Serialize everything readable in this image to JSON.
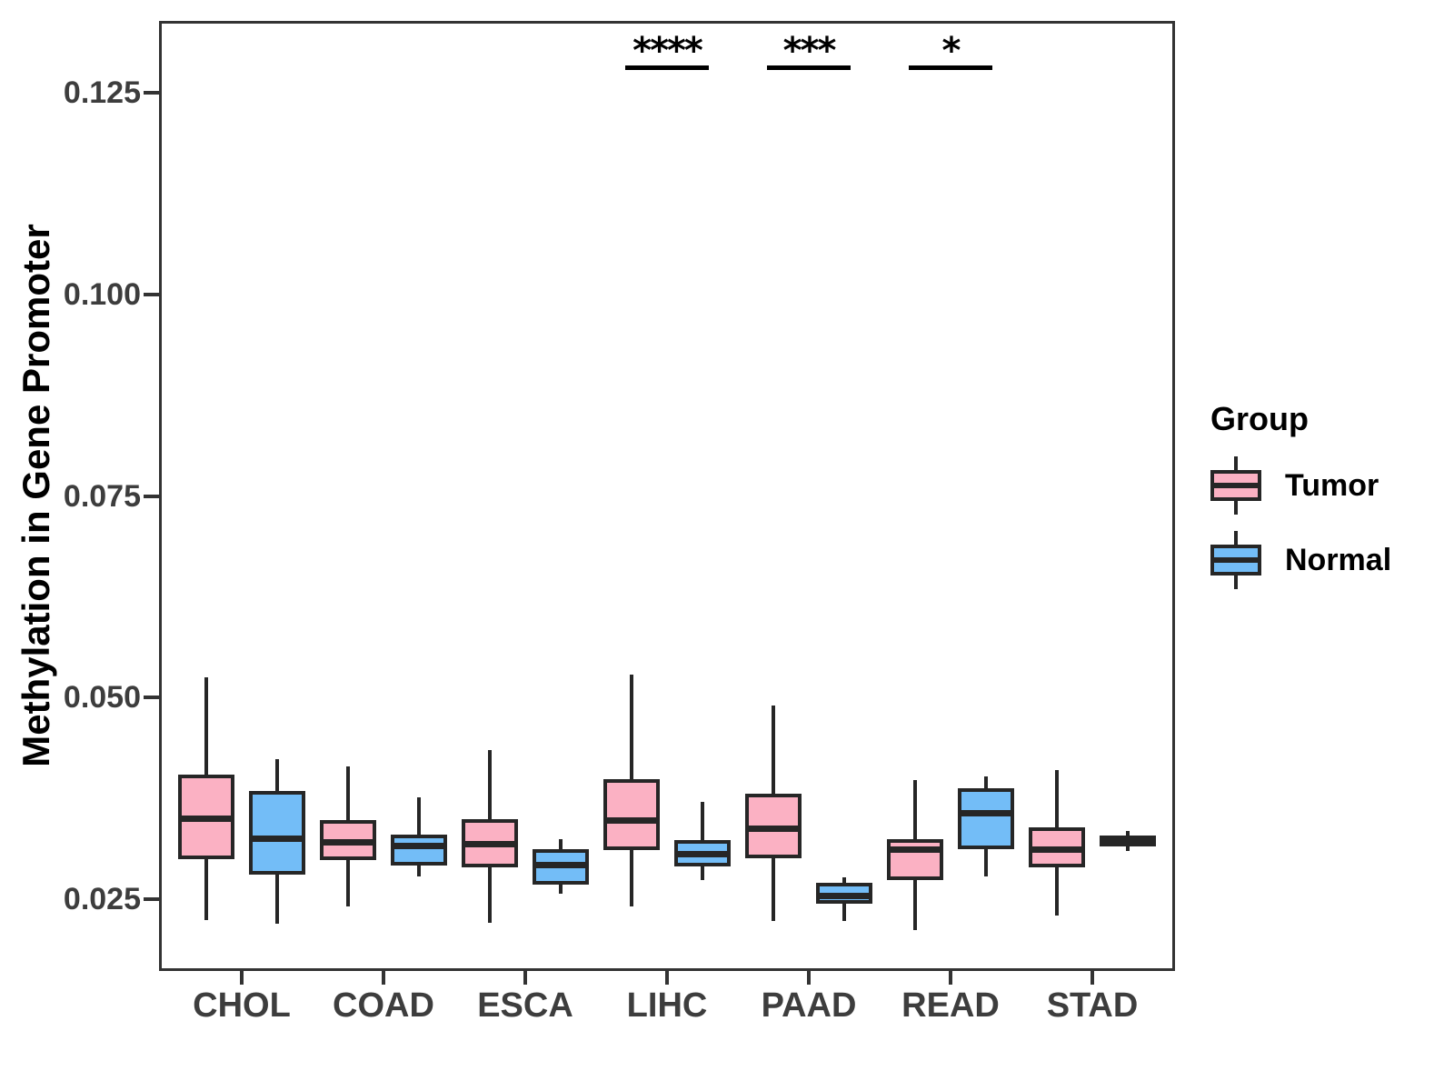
{
  "chart_data": {
    "type": "boxplot",
    "title": "",
    "xlabel": "",
    "ylabel": "Methylation in Gene Promoter",
    "categories": [
      "CHOL",
      "COAD",
      "ESCA",
      "LIHC",
      "PAAD",
      "READ",
      "STAD"
    ],
    "y_axis": {
      "tick_labels": [
        "0.125",
        "0.100",
        "0.075",
        "0.050",
        "0.025"
      ],
      "tick_values": [
        0.125,
        0.1,
        0.075,
        0.05,
        0.025
      ],
      "ylim": [
        0.016,
        0.134
      ],
      "grid": false
    },
    "series": [
      {
        "name": "Tumor",
        "color": "#FBB1C3",
        "stats": [
          {
            "category": "CHOL",
            "whisker_low": 0.0224,
            "q1": 0.03,
            "median": 0.035,
            "q3": 0.0405,
            "whisker_high": 0.0525
          },
          {
            "category": "COAD",
            "whisker_low": 0.0241,
            "q1": 0.0298,
            "median": 0.0321,
            "q3": 0.0348,
            "whisker_high": 0.0415
          },
          {
            "category": "ESCA",
            "whisker_low": 0.0221,
            "q1": 0.0289,
            "median": 0.0319,
            "q3": 0.0349,
            "whisker_high": 0.0435
          },
          {
            "category": "LIHC",
            "whisker_low": 0.0241,
            "q1": 0.0311,
            "median": 0.0348,
            "q3": 0.0399,
            "whisker_high": 0.0528
          },
          {
            "category": "PAAD",
            "whisker_low": 0.0223,
            "q1": 0.0301,
            "median": 0.0338,
            "q3": 0.0381,
            "whisker_high": 0.049
          },
          {
            "category": "READ",
            "whisker_low": 0.0212,
            "q1": 0.0274,
            "median": 0.0312,
            "q3": 0.0324,
            "whisker_high": 0.0398
          },
          {
            "category": "STAD",
            "whisker_low": 0.023,
            "q1": 0.0289,
            "median": 0.0312,
            "q3": 0.0339,
            "whisker_high": 0.041
          }
        ]
      },
      {
        "name": "Normal",
        "color": "#73BDF7",
        "stats": [
          {
            "category": "CHOL",
            "whisker_low": 0.022,
            "q1": 0.028,
            "median": 0.0326,
            "q3": 0.0384,
            "whisker_high": 0.0424
          },
          {
            "category": "COAD",
            "whisker_low": 0.0278,
            "q1": 0.0292,
            "median": 0.0316,
            "q3": 0.033,
            "whisker_high": 0.0376
          },
          {
            "category": "ESCA",
            "whisker_low": 0.0257,
            "q1": 0.0268,
            "median": 0.0293,
            "q3": 0.0312,
            "whisker_high": 0.0324
          },
          {
            "category": "LIHC",
            "whisker_low": 0.0274,
            "q1": 0.0291,
            "median": 0.0306,
            "q3": 0.0323,
            "whisker_high": 0.0371
          },
          {
            "category": "PAAD",
            "whisker_low": 0.0223,
            "q1": 0.0244,
            "median": 0.0255,
            "q3": 0.027,
            "whisker_high": 0.0277
          },
          {
            "category": "READ",
            "whisker_low": 0.0278,
            "q1": 0.0312,
            "median": 0.0357,
            "q3": 0.0387,
            "whisker_high": 0.0402
          },
          {
            "category": "STAD",
            "whisker_low": 0.031,
            "q1": 0.0315,
            "median": 0.0322,
            "q3": 0.0329,
            "whisker_high": 0.0335
          }
        ]
      }
    ],
    "significance": [
      {
        "category": "LIHC",
        "label": "****"
      },
      {
        "category": "PAAD",
        "label": "***"
      },
      {
        "category": "READ",
        "label": "*"
      }
    ],
    "legend_position": "right"
  },
  "legend": {
    "title": "Group",
    "items": [
      {
        "label": "Tumor",
        "color": "#FBB1C3"
      },
      {
        "label": "Normal",
        "color": "#73BDF7"
      }
    ]
  },
  "colors": {
    "tumor_fill": "#FBB1C3",
    "normal_fill": "#73BDF7",
    "box_stroke": "#262626",
    "panel_border": "#333333",
    "axis_text": "#3d3d3d",
    "axis_title": "#000000",
    "background": "#ffffff"
  }
}
